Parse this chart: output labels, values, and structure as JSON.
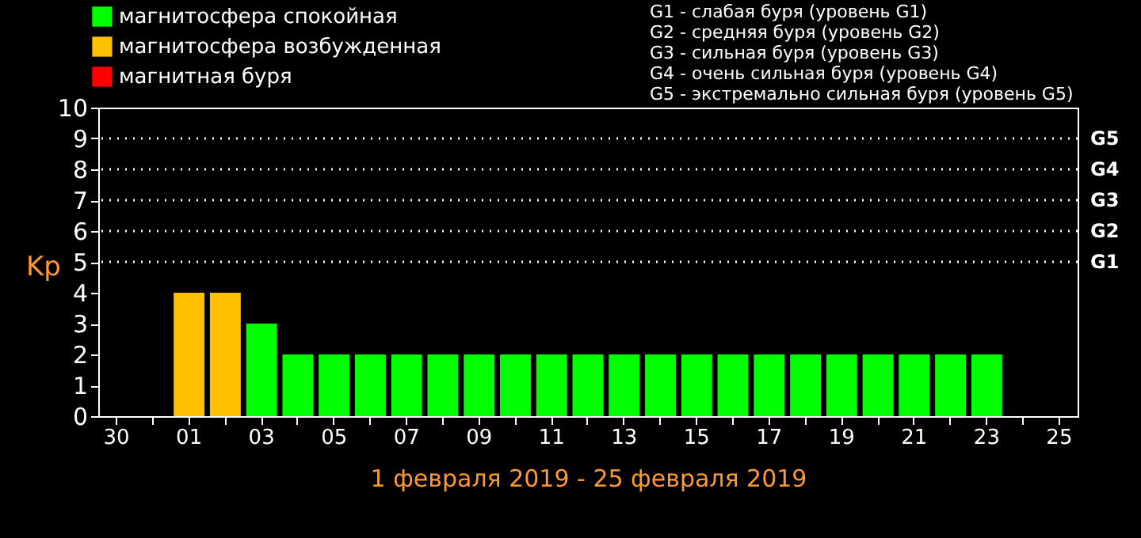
{
  "chart_data": {
    "type": "bar",
    "stacked": true,
    "categories": [
      "30",
      null,
      "01",
      null,
      "03",
      null,
      "05",
      null,
      "07",
      null,
      "09",
      null,
      "11",
      null,
      "13",
      null,
      "15",
      null,
      "17",
      null,
      "19",
      null,
      "21",
      null,
      "23",
      null,
      "25"
    ],
    "series": [
      {
        "name": "магнитосфера спокойная",
        "color": "#00ff00",
        "values": [
          null,
          null,
          null,
          null,
          3,
          2,
          2,
          2,
          2,
          2,
          2,
          2,
          2,
          2,
          2,
          2,
          2,
          2,
          2,
          2,
          2,
          2,
          2,
          2,
          2,
          null,
          null
        ]
      },
      {
        "name": "магнитосфера возбужденная",
        "color": "#ffc000",
        "values": [
          null,
          null,
          4,
          4,
          null,
          null,
          null,
          null,
          null,
          null,
          null,
          null,
          null,
          null,
          null,
          null,
          null,
          null,
          null,
          null,
          null,
          null,
          null,
          null,
          null,
          null,
          null
        ]
      },
      {
        "name": "магнитная буря",
        "color": "#ff0000",
        "values": [
          null,
          null,
          null,
          null,
          null,
          null,
          null,
          null,
          null,
          null,
          null,
          null,
          null,
          null,
          null,
          null,
          null,
          null,
          null,
          null,
          null,
          null,
          null,
          null,
          null,
          null,
          null
        ]
      }
    ],
    "ylabel": "Kp",
    "xlabel": "1 февраля 2019 - 25 февраля 2019",
    "ylim": [
      0,
      10
    ],
    "yticks": [
      0,
      1,
      2,
      3,
      4,
      5,
      6,
      7,
      8,
      9,
      10
    ],
    "ref_lines": [
      {
        "axis": "y",
        "value": 5,
        "label": "G1",
        "color": "#ffffff",
        "line_style": "dotted"
      },
      {
        "axis": "y",
        "value": 6,
        "label": "G2",
        "color": "#ffffff",
        "line_style": "dotted"
      },
      {
        "axis": "y",
        "value": 7,
        "label": "G3",
        "color": "#ffffff",
        "line_style": "dotted"
      },
      {
        "axis": "y",
        "value": 8,
        "label": "G4",
        "color": "#ffffff",
        "line_style": "dotted"
      },
      {
        "axis": "y",
        "value": 9,
        "label": "G5",
        "color": "#ffffff",
        "line_style": "dotted"
      }
    ],
    "annotations": [
      "G1 - слабая буря (уровень G1)",
      "G2 - средняя буря (уровень G2)",
      "G3 - сильная буря (уровень G3)",
      "G4 - очень сильная буря (уровень G4)",
      "G5 - экстремально сильная буря (уровень G5)"
    ],
    "legend": "top left",
    "grid": false
  }
}
